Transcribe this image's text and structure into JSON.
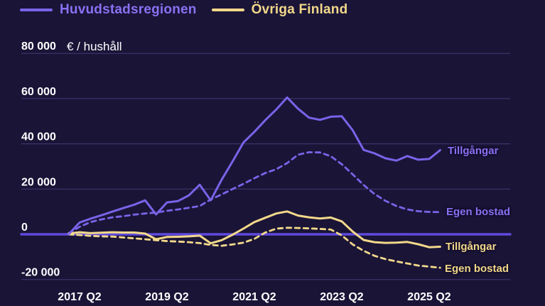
{
  "theme": {
    "background": "#1a1437",
    "purple": "#7a63e8",
    "purple_text": "#8a71f2",
    "yellow": "#f2d88a",
    "grid": "#453a73",
    "zero_line": "#5f49dd",
    "text": "#ffffff"
  },
  "legend": {
    "items": [
      {
        "label": "Huvudstadsregionen",
        "color": "#8a71f2"
      },
      {
        "label": "Övriga Finland",
        "color": "#f2d88a"
      }
    ]
  },
  "chart_data": {
    "type": "line",
    "unit_label": "€ / hushåll",
    "grid": "on",
    "legend_position": "top-left",
    "ylim": [
      -25000,
      85000
    ],
    "y_axis": {
      "ticks": [
        {
          "label": "80 000",
          "value": 80000
        },
        {
          "label": "60 000",
          "value": 60000
        },
        {
          "label": "40 000",
          "value": 40000
        },
        {
          "label": "20 000",
          "value": 20000
        },
        {
          "label": "0",
          "value": 0
        },
        {
          "label": "-20 000",
          "value": -20000
        }
      ]
    },
    "x_axis": {
      "quarters": [
        "2017 Q1",
        "2017 Q2",
        "2017 Q3",
        "2017 Q4",
        "2018 Q1",
        "2018 Q2",
        "2018 Q3",
        "2018 Q4",
        "2019 Q1",
        "2019 Q2",
        "2019 Q3",
        "2019 Q4",
        "2020 Q1",
        "2020 Q2",
        "2020 Q3",
        "2020 Q4",
        "2021 Q1",
        "2021 Q2",
        "2021 Q3",
        "2021 Q4",
        "2022 Q1",
        "2022 Q2",
        "2022 Q3",
        "2022 Q4",
        "2023 Q1",
        "2023 Q2",
        "2023 Q3",
        "2023 Q4",
        "2024 Q1",
        "2024 Q2",
        "2024 Q3",
        "2024 Q4",
        "2025 Q1",
        "2025 Q2",
        "2025 Q3"
      ],
      "ticks": [
        {
          "label": "2017 Q2",
          "i": 1
        },
        {
          "label": "2019 Q2",
          "i": 9
        },
        {
          "label": "2021 Q2",
          "i": 17
        },
        {
          "label": "2023 Q2",
          "i": 25
        },
        {
          "label": "2025 Q2",
          "i": 33
        }
      ]
    },
    "series": [
      {
        "region": "Huvudstadsregionen",
        "end_label": "Tillgångar",
        "color": "#7a63e8",
        "style": "solid",
        "values": [
          0,
          5200,
          6900,
          8400,
          10000,
          11600,
          13100,
          15000,
          8800,
          14100,
          14700,
          17200,
          21900,
          15000,
          24100,
          32200,
          40600,
          45300,
          50500,
          55200,
          60500,
          55500,
          51600,
          50600,
          52000,
          52200,
          46000,
          37300,
          35800,
          33600,
          32600,
          34600,
          33000,
          33300,
          37200
        ]
      },
      {
        "region": "Huvudstadsregionen",
        "end_label": "Egen bostad",
        "color": "#7a63e8",
        "style": "dashed",
        "values": [
          500,
          3300,
          5400,
          6600,
          7500,
          8000,
          8700,
          9200,
          9600,
          10400,
          11000,
          11700,
          12500,
          15400,
          17600,
          20000,
          22300,
          24800,
          27100,
          28800,
          31500,
          35200,
          36300,
          36200,
          34500,
          31000,
          26500,
          21800,
          17800,
          14800,
          12500,
          11000,
          10200,
          9900,
          9800
        ]
      },
      {
        "region": "Övriga Finland",
        "end_label": "Tillgångar",
        "color": "#f2d88a",
        "style": "solid",
        "values": [
          300,
          900,
          500,
          700,
          900,
          800,
          800,
          300,
          -2200,
          -1200,
          -1100,
          -900,
          -600,
          -4000,
          -2600,
          -200,
          2500,
          5400,
          7300,
          9200,
          10100,
          8300,
          7500,
          7000,
          7400,
          5700,
          1200,
          -2500,
          -3500,
          -3800,
          -3700,
          -3400,
          -4400,
          -5700,
          -5500
        ]
      },
      {
        "region": "Övriga Finland",
        "end_label": "Egen bostad",
        "color": "#f2d88a",
        "style": "dashed",
        "values": [
          0,
          -300,
          -700,
          -900,
          -1000,
          -1400,
          -1800,
          -2200,
          -2600,
          -3000,
          -3200,
          -3500,
          -3900,
          -4700,
          -5100,
          -4500,
          -3700,
          -2000,
          800,
          2500,
          2900,
          2800,
          2600,
          2400,
          2100,
          -500,
          -4500,
          -7300,
          -9500,
          -11000,
          -12000,
          -12900,
          -13800,
          -14300,
          -14800
        ]
      }
    ]
  }
}
